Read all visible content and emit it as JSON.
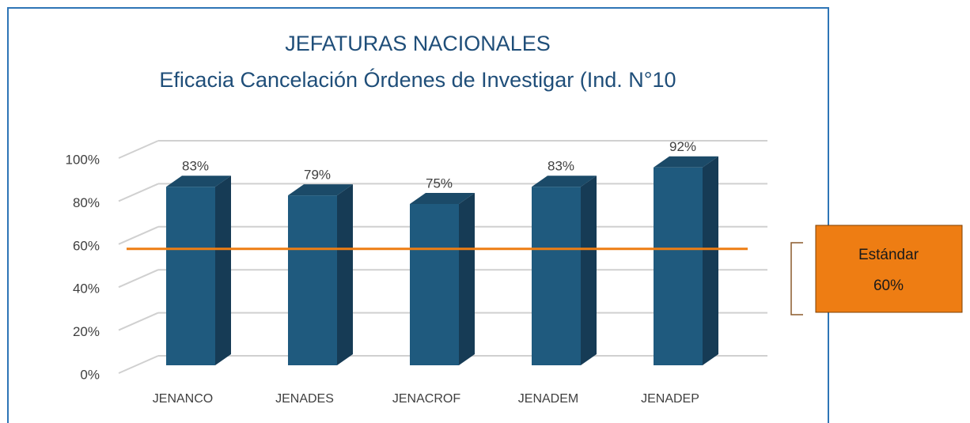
{
  "chart_data": {
    "type": "bar3d",
    "title": "JEFATURAS NACIONALES",
    "subtitle": "Eficacia Cancelación Órdenes de Investigar (Ind. N°10",
    "categories": [
      "JENANCO",
      "JENADES",
      "JENACROF",
      "JENADEM",
      "JENADEP"
    ],
    "values": [
      83,
      79,
      75,
      83,
      92
    ],
    "value_labels": [
      "83%",
      "79%",
      "75%",
      "83%",
      "92%"
    ],
    "color": "#1f5a7e",
    "ylim": [
      0,
      100
    ],
    "yticks": [
      {
        "value": 0,
        "label": "0%"
      },
      {
        "value": 20,
        "label": "20%"
      },
      {
        "value": 40,
        "label": "40%"
      },
      {
        "value": 60,
        "label": "60%"
      },
      {
        "value": 80,
        "label": "80%"
      },
      {
        "value": 100,
        "label": "100%"
      }
    ],
    "grid": true,
    "standard": {
      "name": "Estándar",
      "value": 60,
      "label": "60%",
      "color": "#ee7d13"
    }
  }
}
